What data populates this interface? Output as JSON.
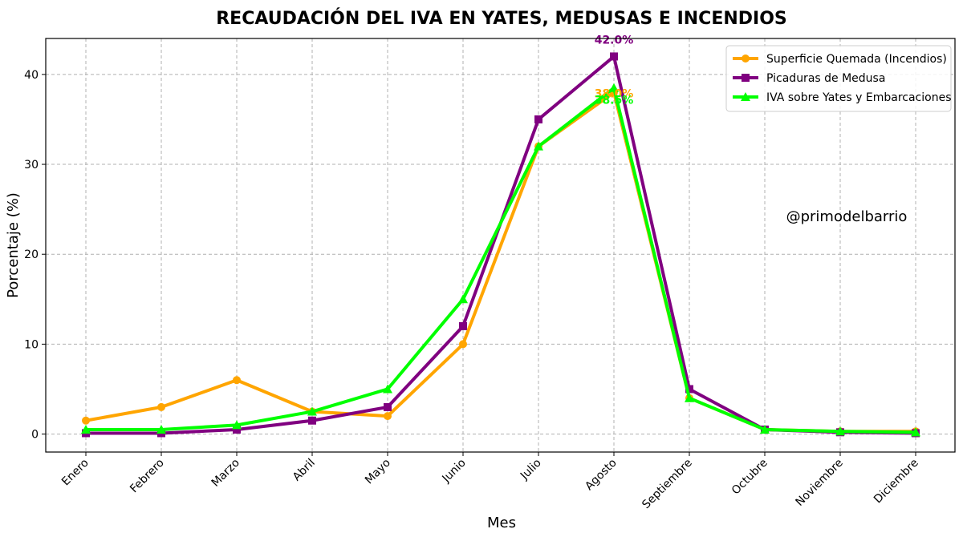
{
  "chart_data": {
    "type": "line",
    "title": "RECAUDACIÓN DEL IVA EN YATES, MEDUSAS E INCENDIOS",
    "xlabel": "Mes",
    "ylabel": "Porcentaje (%)",
    "ylim": [
      -2,
      44
    ],
    "yticks": [
      0,
      10,
      20,
      30,
      40
    ],
    "grid": true,
    "legend_position": "top-right",
    "categories": [
      "Enero",
      "Febrero",
      "Marzo",
      "Abril",
      "Mayo",
      "Junio",
      "Julio",
      "Agosto",
      "Septiembre",
      "Octubre",
      "Noviembre",
      "Diciembre"
    ],
    "series": [
      {
        "name": "Superficie Quemada (Incendios)",
        "color": "#FFA500",
        "marker": "circle",
        "values": [
          1.5,
          3,
          6,
          2.5,
          2,
          10,
          32,
          38,
          4,
          0.5,
          0.3,
          0.3
        ]
      },
      {
        "name": "Picaduras de Medusa",
        "color": "#800080",
        "marker": "square",
        "values": [
          0.1,
          0.1,
          0.5,
          1.5,
          3,
          12,
          35,
          42,
          5,
          0.5,
          0.2,
          0.1
        ]
      },
      {
        "name": "IVA sobre Yates y Embarcaciones",
        "color": "#00FF00",
        "marker": "triangle",
        "values": [
          0.5,
          0.5,
          1,
          2.5,
          5,
          15,
          32,
          38.5,
          4,
          0.5,
          0.3,
          0.2
        ]
      }
    ],
    "annotations": [
      {
        "text": "42.0%",
        "color": "#800080",
        "series": 1,
        "index": 7
      },
      {
        "text": "38.0%",
        "color": "#FFA500",
        "series": 0,
        "index": 7
      },
      {
        "text": "38.5%",
        "color": "#00FF00",
        "series": 2,
        "index": 7
      }
    ],
    "watermark": "@primodelbarrio"
  }
}
